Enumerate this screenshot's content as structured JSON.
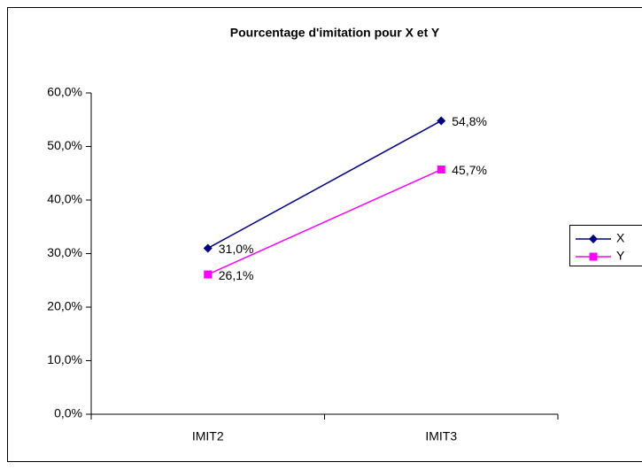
{
  "chart_data": {
    "type": "line",
    "title": "Pourcentage d'imitation pour X et Y",
    "categories": [
      "IMIT2",
      "IMIT3"
    ],
    "series": [
      {
        "name": "X",
        "color": "#000080",
        "marker": "diamond",
        "values": [
          31.0,
          54.8
        ],
        "value_labels": [
          "31,0%",
          "54,8%"
        ]
      },
      {
        "name": "Y",
        "color": "#ff00ff",
        "marker": "square",
        "values": [
          26.1,
          45.7
        ],
        "value_labels": [
          "26,1%",
          "45,7%"
        ]
      }
    ],
    "ylim": [
      0,
      60
    ],
    "yticks": [
      {
        "value": 0,
        "label": "0,0%"
      },
      {
        "value": 10,
        "label": "10,0%"
      },
      {
        "value": 20,
        "label": "20,0%"
      },
      {
        "value": 30,
        "label": "30,0%"
      },
      {
        "value": 40,
        "label": "40,0%"
      },
      {
        "value": 50,
        "label": "50,0%"
      },
      {
        "value": 60,
        "label": "60,0%"
      }
    ],
    "grid": false,
    "legend": "right"
  }
}
